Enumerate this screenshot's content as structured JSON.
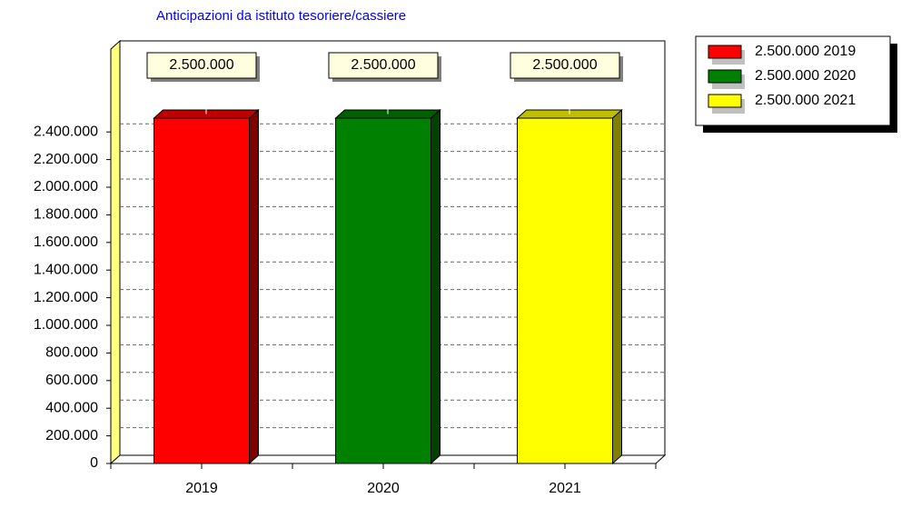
{
  "chart_data": {
    "type": "bar3d",
    "title": "Anticipazioni da istituto tesoriere/cassiere",
    "categories": [
      "2019",
      "2020",
      "2021"
    ],
    "values": [
      2500000,
      2500000,
      2500000
    ],
    "value_labels": [
      "2.500.000",
      "2.500.000",
      "2.500.000"
    ],
    "colors": [
      "#ff0000",
      "#008000",
      "#ffff00"
    ],
    "legend": [
      "2.500.000 2019",
      "2.500.000 2020",
      "2.500.000 2021"
    ],
    "ylim": [
      0,
      3000000
    ],
    "yticks": [
      {
        "value": 0,
        "label": "0"
      },
      {
        "value": 200000,
        "label": "200.000"
      },
      {
        "value": 400000,
        "label": "400.000"
      },
      {
        "value": 600000,
        "label": "600.000"
      },
      {
        "value": 800000,
        "label": "800.000"
      },
      {
        "value": 1000000,
        "label": "1.000.000"
      },
      {
        "value": 1200000,
        "label": "1.200.000"
      },
      {
        "value": 1400000,
        "label": "1.400.000"
      },
      {
        "value": 1600000,
        "label": "1.600.000"
      },
      {
        "value": 1800000,
        "label": "1.800.000"
      },
      {
        "value": 2000000,
        "label": "2.000.000"
      },
      {
        "value": 2200000,
        "label": "2.200.000"
      },
      {
        "value": 2400000,
        "label": "2.400.000"
      }
    ],
    "grid": true,
    "legend_position": "top-right"
  }
}
